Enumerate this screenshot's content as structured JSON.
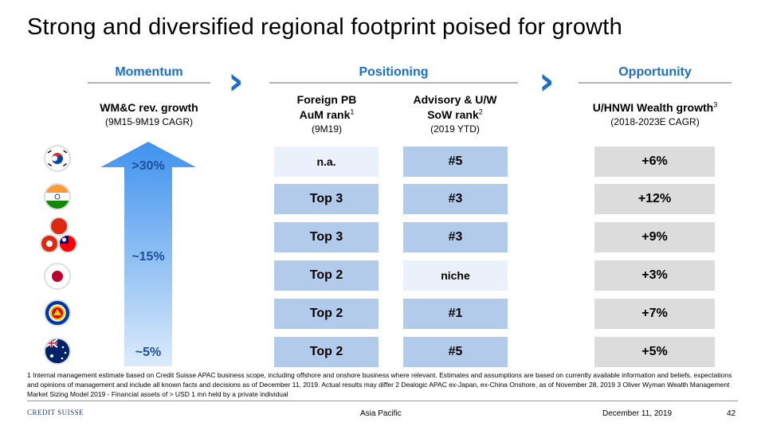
{
  "title": "Strong and diversified regional footprint poised for growth",
  "sections": {
    "momentum": "Momentum",
    "positioning": "Positioning",
    "opportunity": "Opportunity"
  },
  "columns": {
    "wmc": {
      "title": "WM&C rev. growth",
      "sub": "(9M15-9M19 CAGR)"
    },
    "pb": {
      "title_l1": "Foreign PB",
      "title_l2": "AuM rank",
      "sup": "1",
      "sub": "(9M19)"
    },
    "adv": {
      "title_l1": "Advisory & U/W",
      "title_l2": "SoW rank",
      "sup": "2",
      "sub": "(2019 YTD)"
    },
    "hnwi": {
      "title": "U/HNWI Wealth growth",
      "sup": "3",
      "sub": "(2018-2023E CAGR)"
    }
  },
  "momentum_labels": {
    "high": ">30%",
    "mid": "~15%",
    "low": "~5%"
  },
  "flags": [
    "korea-flag",
    "india-flag",
    "hongkong-taiwan-flags",
    "japan-flag",
    "asean-flag",
    "australia-flag"
  ],
  "rows": [
    {
      "pb": "n.a.",
      "adv": "#5",
      "hnwi": "+6%"
    },
    {
      "pb": "Top 3",
      "adv": "#3",
      "hnwi": "+12%"
    },
    {
      "pb": "Top 3",
      "adv": "#3",
      "hnwi": "+9%"
    },
    {
      "pb": "Top 2",
      "adv": "niche",
      "hnwi": "+3%"
    },
    {
      "pb": "Top 2",
      "adv": "#1",
      "hnwi": "+7%"
    },
    {
      "pb": "Top 2",
      "adv": "#5",
      "hnwi": "+5%"
    }
  ],
  "footnote": "1 Internal management estimate based on Credit Suisse APAC business scope, including offshore and onshore business where relevant. Estimates and assumptions are based on currently available information and beliefs, expectations and opinions of management and include all known facts and decisions as of December 11, 2019. Actual results may differ     2 Dealogic APAC ex-Japan, ex-China Onshore, as of November 28, 2019     3 Oliver Wyman Wealth Management Market Sizing Model 2019 - Financial assets of > USD 1 mn held by a private individual",
  "footer": {
    "logo": "CREDIT SUISSE",
    "center": "Asia Pacific",
    "date": "December 11, 2019",
    "page": "42"
  },
  "colors": {
    "accent": "#1a6fc9",
    "cell_dark": "#b3cbeb",
    "cell_light": "#eaf1fb",
    "cell_gray": "#dcdcdc"
  }
}
